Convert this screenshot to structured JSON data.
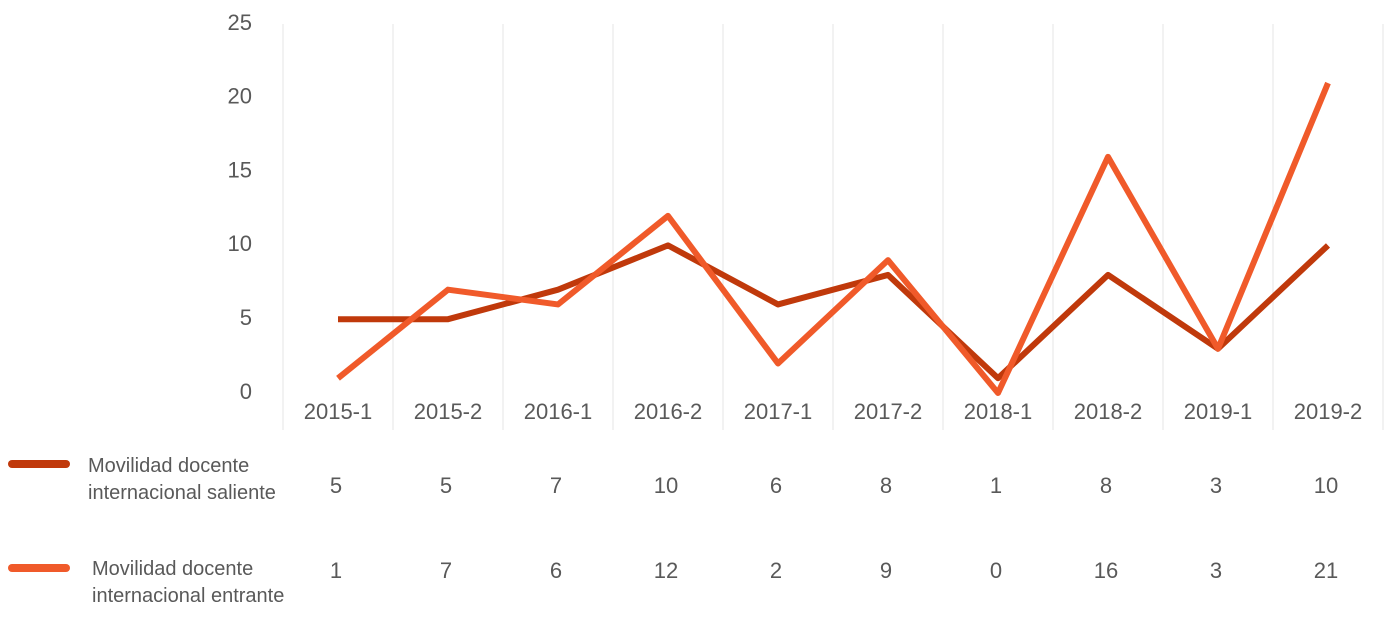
{
  "chart_data": {
    "type": "line",
    "categories": [
      "2015-1",
      "2015-2",
      "2016-1",
      "2016-2",
      "2017-1",
      "2017-2",
      "2018-1",
      "2018-2",
      "2019-1",
      "2019-2"
    ],
    "series": [
      {
        "name": "Movilidad docente internacional saliente",
        "color": "#c0390b",
        "values": [
          5,
          5,
          7,
          10,
          6,
          8,
          1,
          8,
          3,
          10
        ]
      },
      {
        "name": "Movilidad docente internacional entrante",
        "color": "#f05a2a",
        "values": [
          1,
          7,
          6,
          12,
          2,
          9,
          0,
          16,
          3,
          21
        ]
      }
    ],
    "ylim": [
      0,
      25
    ],
    "yticks": [
      0,
      5,
      10,
      15,
      20,
      25
    ],
    "grid": true,
    "data_table": true
  }
}
